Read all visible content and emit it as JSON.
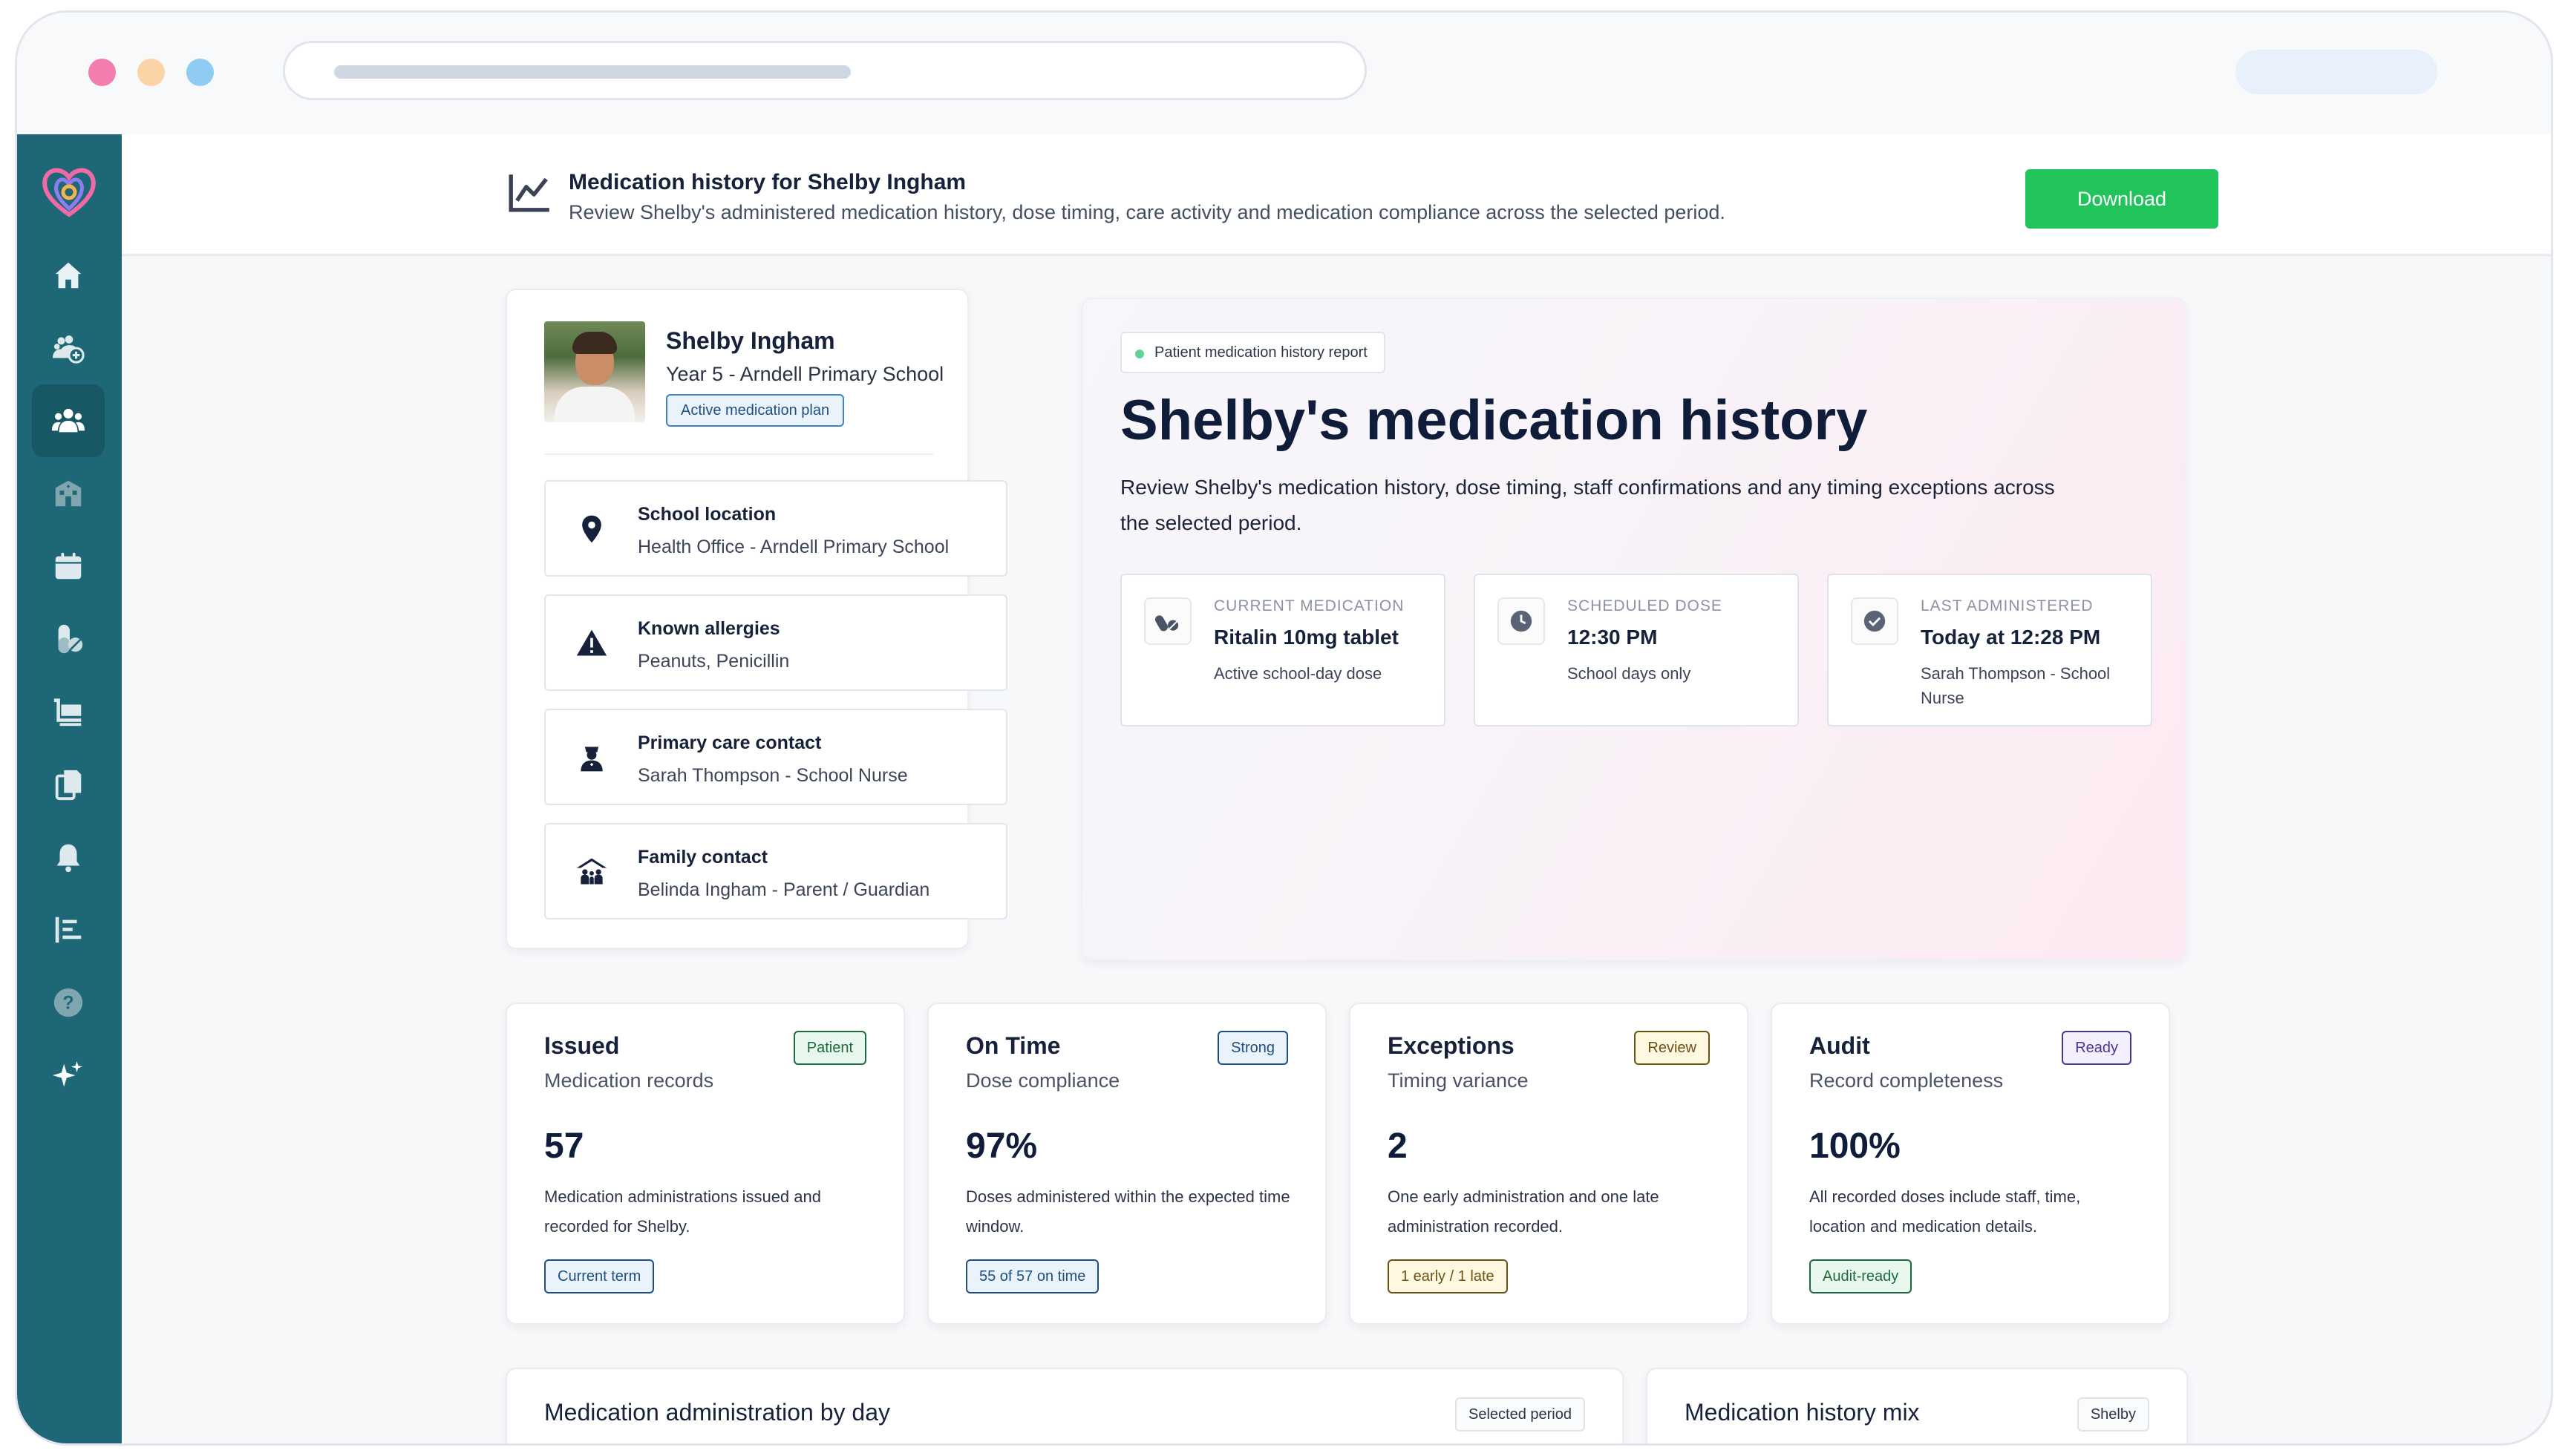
{
  "header": {
    "title": "Medication history for Shelby Ingham",
    "subtitle": "Review Shelby's administered medication history, dose timing, care activity and medication compliance across the selected period.",
    "download_label": "Download"
  },
  "sidebar": {
    "items": [
      {
        "name": "home",
        "icon": "home-icon"
      },
      {
        "name": "groups",
        "icon": "group-add-icon"
      },
      {
        "name": "students",
        "icon": "people-icon",
        "active": true
      },
      {
        "name": "schools",
        "icon": "building-icon"
      },
      {
        "name": "calendar",
        "icon": "calendar-icon"
      },
      {
        "name": "medications",
        "icon": "pill-icon"
      },
      {
        "name": "supplies",
        "icon": "cart-icon"
      },
      {
        "name": "documents",
        "icon": "documents-icon"
      },
      {
        "name": "notifications",
        "icon": "bell-icon"
      },
      {
        "name": "reports",
        "icon": "list-icon"
      },
      {
        "name": "help",
        "icon": "help-icon"
      },
      {
        "name": "ai",
        "icon": "sparkle-icon"
      }
    ]
  },
  "profile": {
    "name": "Shelby Ingham",
    "school": "Year 5 - Arndell Primary School",
    "badge": "Active medication plan",
    "info": [
      {
        "title": "School location",
        "value": "Health Office - Arndell Primary School",
        "icon": "location-pin-icon"
      },
      {
        "title": "Known allergies",
        "value": "Peanuts, Penicillin",
        "icon": "warning-icon"
      },
      {
        "title": "Primary care contact",
        "value": "Sarah Thompson - School Nurse",
        "icon": "nurse-icon"
      },
      {
        "title": "Family contact",
        "value": "Belinda Ingham - Parent / Guardian",
        "icon": "family-icon"
      }
    ]
  },
  "hero": {
    "tag": "Patient medication history report",
    "title": "Shelby's medication history",
    "description": "Review Shelby's medication history, dose timing, staff confirmations and any timing exceptions across the selected period.",
    "metrics": [
      {
        "label": "CURRENT MEDICATION",
        "value": "Ritalin 10mg tablet",
        "sub": "Active school-day dose",
        "icon": "pills-icon"
      },
      {
        "label": "SCHEDULED DOSE",
        "value": "12:30 PM",
        "sub": "School days only",
        "icon": "clock-icon"
      },
      {
        "label": "LAST ADMINISTERED",
        "value": "Today at 12:28 PM",
        "sub": "Sarah Thompson - School Nurse",
        "icon": "check-circle-icon"
      }
    ]
  },
  "stats": [
    {
      "title": "Issued",
      "subtitle": "Medication records",
      "badge": "Patient",
      "value": "57",
      "description": "Medication administrations issued and recorded for Shelby.",
      "chip": "Current term",
      "badge_color": "green",
      "chip_color": "blue"
    },
    {
      "title": "On Time",
      "subtitle": "Dose compliance",
      "badge": "Strong",
      "value": "97%",
      "description": "Doses administered within the expected time window.",
      "chip": "55 of 57 on time",
      "badge_color": "blue",
      "chip_color": "blue"
    },
    {
      "title": "Exceptions",
      "subtitle": "Timing variance",
      "badge": "Review",
      "value": "2",
      "description": "One early administration and one late administration recorded.",
      "chip": "1 early / 1 late",
      "badge_color": "yellow",
      "chip_color": "yellow"
    },
    {
      "title": "Audit",
      "subtitle": "Record completeness",
      "badge": "Ready",
      "value": "100%",
      "description": "All recorded doses include staff, time, location and medication details.",
      "chip": "Audit-ready",
      "badge_color": "purple",
      "chip_color": "green"
    }
  ],
  "bottom": [
    {
      "title": "Medication administration by day",
      "tag": "Selected period"
    },
    {
      "title": "Medication history mix",
      "tag": "Shelby"
    }
  ],
  "colors": {
    "sidebar": "#1d6776",
    "accent_green": "#21c45a",
    "heading": "#0f1c3a"
  }
}
